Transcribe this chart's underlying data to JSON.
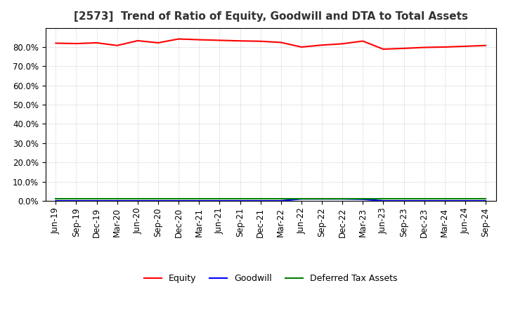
{
  "title": "[2573]  Trend of Ratio of Equity, Goodwill and DTA to Total Assets",
  "xlabel_labels": [
    "Jun-19",
    "Sep-19",
    "Dec-19",
    "Mar-20",
    "Jun-20",
    "Sep-20",
    "Dec-20",
    "Mar-21",
    "Jun-21",
    "Sep-21",
    "Dec-21",
    "Mar-22",
    "Jun-22",
    "Sep-22",
    "Dec-22",
    "Mar-23",
    "Jun-23",
    "Sep-23",
    "Dec-23",
    "Mar-24",
    "Jun-24",
    "Sep-24"
  ],
  "equity": [
    0.82,
    0.818,
    0.822,
    0.808,
    0.833,
    0.822,
    0.842,
    0.838,
    0.835,
    0.832,
    0.83,
    0.824,
    0.8,
    0.81,
    0.817,
    0.831,
    0.789,
    0.793,
    0.798,
    0.8,
    0.804,
    0.808
  ],
  "goodwill": [
    0.0,
    0.0,
    0.0,
    0.0,
    0.0,
    0.0,
    0.0,
    0.0,
    0.0,
    0.0,
    0.0,
    0.0,
    0.01,
    0.01,
    0.01,
    0.008,
    0.0,
    0.0,
    0.0,
    0.0,
    0.0,
    0.0
  ],
  "dta": [
    0.01,
    0.01,
    0.01,
    0.01,
    0.01,
    0.01,
    0.01,
    0.01,
    0.01,
    0.01,
    0.01,
    0.01,
    0.01,
    0.01,
    0.01,
    0.01,
    0.01,
    0.01,
    0.01,
    0.01,
    0.01,
    0.01
  ],
  "equity_color": "#FF0000",
  "goodwill_color": "#0000FF",
  "dta_color": "#008000",
  "ylim": [
    0.0,
    0.9
  ],
  "yticks": [
    0.0,
    0.1,
    0.2,
    0.3,
    0.4,
    0.5,
    0.6,
    0.7,
    0.8
  ],
  "background_color": "#FFFFFF",
  "plot_bg_color": "#FFFFFF",
  "grid_color": "#AAAAAA",
  "title_fontsize": 11,
  "tick_fontsize": 8.5,
  "legend_fontsize": 9
}
